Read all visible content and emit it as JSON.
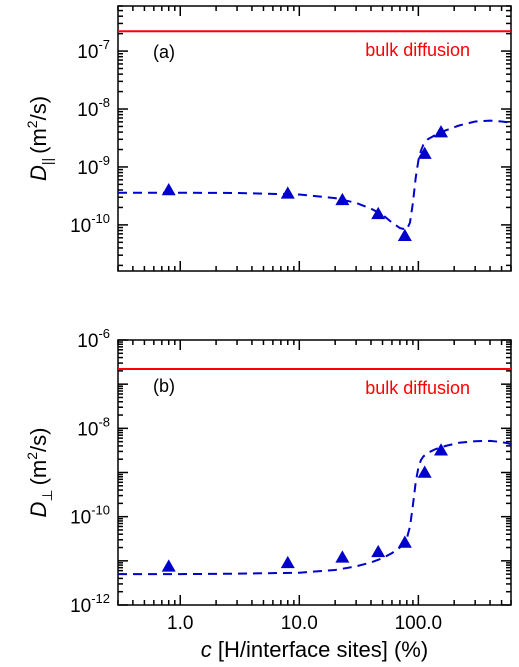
{
  "chart_data": [
    {
      "type": "scatter",
      "panel_label": "(a)",
      "ylabel_var": "D",
      "ylabel_sub": "||",
      "ylabel_unit_pre": "(m",
      "ylabel_unit_sup": "2",
      "ylabel_unit_post": "/s)",
      "xscale": "log",
      "yscale": "log",
      "xlim": [
        0.3,
        600
      ],
      "ylim": [
        1.6e-11,
        6e-07
      ],
      "yticks": [
        {
          "value": 1e-07,
          "base": "10",
          "exp": "-7"
        },
        {
          "value": 1e-08,
          "base": "10",
          "exp": "-8"
        },
        {
          "value": 1e-09,
          "base": "10",
          "exp": "-9"
        },
        {
          "value": 1e-10,
          "base": "10",
          "exp": "-10"
        }
      ],
      "reference_line": {
        "label": "bulk diffusion",
        "value": 2.2e-07,
        "color": "#ff0000"
      },
      "series_color": "#0000cc",
      "points": {
        "x": [
          0.8,
          8,
          23,
          46,
          77,
          113,
          155
        ],
        "y": [
          4e-10,
          3.5e-10,
          2.7e-10,
          1.55e-10,
          6.5e-11,
          1.7e-09,
          4e-09
        ]
      },
      "fit": {
        "x": [
          0.3,
          1,
          3,
          10,
          20,
          30,
          40,
          50,
          60,
          70,
          80,
          85,
          90,
          95,
          100,
          105,
          110,
          120,
          140,
          170,
          220,
          300,
          400,
          500,
          600
        ],
        "y": [
          3.6e-10,
          3.6e-10,
          3.55e-10,
          3.35e-10,
          2.9e-10,
          2.4e-10,
          1.9e-10,
          1.5e-10,
          1.1e-10,
          8.8e-11,
          8.3e-11,
          1.1e-10,
          2.4e-10,
          6.5e-10,
          1.3e-09,
          1.9e-09,
          2.4e-09,
          3e-09,
          3.6e-09,
          4.3e-09,
          5.2e-09,
          6.1e-09,
          6.3e-09,
          6.1e-09,
          5.8e-09
        ]
      }
    },
    {
      "type": "scatter",
      "panel_label": "(b)",
      "ylabel_var": "D",
      "ylabel_sub": "⊥",
      "ylabel_unit_pre": "(m",
      "ylabel_unit_sup": "2",
      "ylabel_unit_post": "/s)",
      "xlabel_var": "c",
      "xlabel_rest": " [H/interface sites] (%)",
      "xscale": "log",
      "yscale": "log",
      "xlim": [
        0.3,
        600
      ],
      "ylim": [
        1e-12,
        1e-06
      ],
      "xticks": [
        {
          "value": 1,
          "label": "1.0"
        },
        {
          "value": 10,
          "label": "10.0"
        },
        {
          "value": 100,
          "label": "100.0"
        }
      ],
      "yticks": [
        {
          "value": 1e-06,
          "base": "10",
          "exp": "-6"
        },
        {
          "value": 1e-08,
          "base": "10",
          "exp": "-8"
        },
        {
          "value": 1e-10,
          "base": "10",
          "exp": "-10"
        },
        {
          "value": 1e-12,
          "base": "10",
          "exp": "-12"
        }
      ],
      "reference_line": {
        "label": "bulk diffusion",
        "value": 2.2e-07,
        "color": "#ff0000"
      },
      "series_color": "#0000cc",
      "points": {
        "x": [
          0.8,
          8,
          23,
          46,
          77,
          113,
          155
        ],
        "y": [
          7.5e-12,
          9e-12,
          1.2e-11,
          1.6e-11,
          2.6e-11,
          1e-09,
          3.2e-09
        ]
      },
      "fit": {
        "x": [
          0.3,
          1,
          3,
          10,
          20,
          30,
          40,
          50,
          60,
          70,
          80,
          85,
          90,
          95,
          100,
          105,
          110,
          120,
          140,
          170,
          220,
          300,
          400,
          500,
          600
        ],
        "y": [
          5e-12,
          5e-12,
          5.1e-12,
          5.4e-12,
          6.2e-12,
          7.5e-12,
          9.2e-12,
          1.15e-11,
          1.5e-11,
          2e-11,
          3.2e-11,
          6e-11,
          1.8e-10,
          6e-10,
          1.3e-09,
          1.9e-09,
          2.3e-09,
          2.8e-09,
          3.4e-09,
          4e-09,
          4.7e-09,
          5.1e-09,
          5.2e-09,
          4.9e-09,
          4.4e-09
        ]
      }
    }
  ]
}
